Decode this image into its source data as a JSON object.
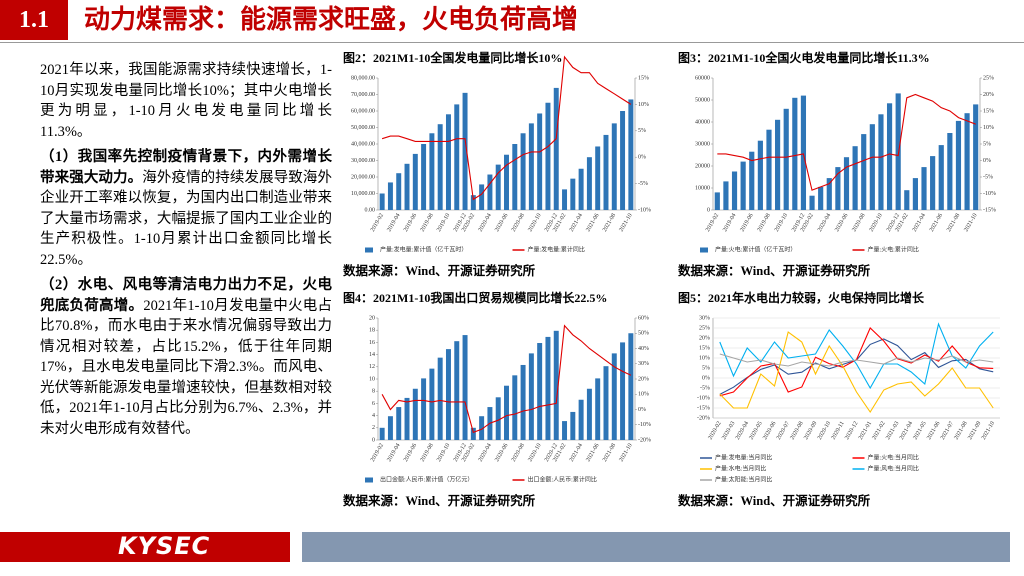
{
  "header": {
    "section": "1.1",
    "title": "动力煤需求：能源需求旺盛，火电负荷高增"
  },
  "body": [
    {
      "text": "2021年以来，我国能源需求持续快速增长，1-10月实现发电量同比增长10%；其中火电增长更为明显，1-10月火电发电量同比增长11.3%。"
    },
    {
      "lead": "（1）我国率先控制疫情背景下，内外需增长带来强大动力。",
      "text": "海外疫情的持续发展导致海外企业开工率难以恢复，为国内出口制造业带来了大量市场需求，大幅提振了国内工业企业的生产积极性。1-10月累计出口金额同比增长22.5%。"
    },
    {
      "lead": "（2）水电、风电等清洁电力出力不足，火电兜底负荷高增。",
      "text": "2021年1-10月发电量中火电占比70.8%，而水电由于来水情况偏弱导致出力情况相对较差，占比15.2%，低于往年同期17%，且水电发电量同比下滑2.3%。而风电、光伏等新能源发电量增速较快，但基数相对较低，2021年1-10月占比分别为6.7%、2.3%，并未对火电形成有效替代。"
    }
  ],
  "footer": {
    "logo": "KYSEC"
  },
  "chart_data": [
    {
      "type": "bar_line",
      "title": "图2：2021M1-10全国发电量同比增长10%",
      "source": "数据来源：Wind、开源证券研究所",
      "categories": [
        "2019-02",
        null,
        "2019-04",
        null,
        "2019-06",
        null,
        "2019-08",
        null,
        "2019-10",
        null,
        "2019-12",
        "2020-02",
        null,
        "2020-04",
        null,
        "2020-06",
        null,
        "2020-08",
        null,
        "2020-10",
        null,
        "2020-12",
        "2021-02",
        null,
        "2021-04",
        null,
        "2021-06",
        null,
        "2021-08",
        null,
        "2021-10"
      ],
      "series": [
        {
          "name": "产量:发电量:累计值（亿千瓦时）",
          "mark": "bar",
          "color": "#2e75b6",
          "values": [
            10000,
            16700,
            22300,
            28000,
            34000,
            40000,
            46500,
            52000,
            58000,
            64000,
            71000,
            9000,
            15500,
            21500,
            27500,
            33500,
            40000,
            46500,
            52500,
            58500,
            65000,
            74000,
            12500,
            19000,
            25000,
            32000,
            38500,
            45500,
            52500,
            60000,
            67000
          ]
        },
        {
          "name": "产量:发电量:累计同比",
          "mark": "line",
          "axis": "y2",
          "color": "#e00000",
          "values": [
            3.5,
            4,
            4,
            3.5,
            3,
            3,
            3,
            3,
            3,
            3.5,
            3.5,
            -8,
            -7,
            -5,
            -3,
            -1.5,
            -0.5,
            0.5,
            1,
            1,
            2,
            3.5,
            19,
            17,
            16,
            16,
            14,
            13,
            12,
            11,
            10
          ]
        }
      ],
      "ylim": [
        0,
        80000
      ],
      "yticks": [
        {
          "value": 0,
          "label": "0.00"
        },
        {
          "value": 10000,
          "label": "10,000.00"
        },
        {
          "value": 20000,
          "label": "20,000.00"
        },
        {
          "value": 30000,
          "label": "30,000.00"
        },
        {
          "value": 40000,
          "label": "40,000.00"
        },
        {
          "value": 50000,
          "label": "50,000.00"
        },
        {
          "value": 60000,
          "label": "60,000.00"
        },
        {
          "value": 70000,
          "label": "70,000.00"
        },
        {
          "value": 80000,
          "label": "80,000.00"
        }
      ],
      "y2lim": [
        -10,
        15
      ],
      "y2ticks": [
        {
          "value": -10,
          "label": "-10%"
        },
        {
          "value": -5,
          "label": "-5%"
        },
        {
          "value": 0,
          "label": "0%"
        },
        {
          "value": 5,
          "label": "5%"
        },
        {
          "value": 10,
          "label": "10%"
        },
        {
          "value": 15,
          "label": "15%"
        }
      ],
      "grid": false
    },
    {
      "type": "bar_line",
      "title": "图3：2021M1-10全国火电发电量同比增长11.3%",
      "source": "数据来源：Wind、开源证券研究所",
      "categories": [
        "2019-02",
        null,
        "2019-04",
        null,
        "2019-06",
        null,
        "2019-08",
        null,
        "2019-10",
        null,
        "2019-12",
        "2020-02",
        null,
        "2020-04",
        null,
        "2020-06",
        null,
        "2020-08",
        null,
        "2020-10",
        null,
        "2020-12",
        "2021-02",
        null,
        "2021-04",
        null,
        "2021-06",
        null,
        "2021-08",
        null,
        "2021-10"
      ],
      "series": [
        {
          "name": "产量:火电:累计值（亿千瓦时）",
          "mark": "bar",
          "color": "#2e75b6",
          "values": [
            8000,
            13000,
            17500,
            22000,
            26500,
            31500,
            36500,
            41000,
            46000,
            51000,
            52000,
            6500,
            10500,
            14500,
            19500,
            24000,
            29000,
            34500,
            39000,
            43500,
            48500,
            53000,
            9000,
            14500,
            19500,
            24500,
            29500,
            35000,
            40500,
            44000,
            48000
          ]
        },
        {
          "name": "产量:火电:累计同比",
          "mark": "line",
          "axis": "y2",
          "color": "#e00000",
          "values": [
            2,
            2,
            1.5,
            1,
            0,
            0.5,
            1,
            1,
            1,
            1.5,
            2,
            -9,
            -8,
            -7,
            -4,
            -2,
            -1,
            0,
            1,
            1,
            2,
            1.5,
            19,
            20,
            19,
            18,
            16,
            15,
            13,
            12,
            11
          ]
        }
      ],
      "ylim": [
        0,
        60000
      ],
      "yticks": [
        0,
        10000,
        20000,
        30000,
        40000,
        50000,
        60000
      ],
      "y2lim": [
        -15,
        25
      ],
      "y2ticks": [
        {
          "value": -15,
          "label": "-15%"
        },
        {
          "value": -10,
          "label": "-10%"
        },
        {
          "value": -5,
          "label": "-5%"
        },
        {
          "value": 0,
          "label": "0%"
        },
        {
          "value": 5,
          "label": "5%"
        },
        {
          "value": 10,
          "label": "10%"
        },
        {
          "value": 15,
          "label": "15%"
        },
        {
          "value": 20,
          "label": "20%"
        },
        {
          "value": 25,
          "label": "25%"
        }
      ],
      "grid": false
    },
    {
      "type": "bar_line",
      "title": "图4：2021M1-10我国出口贸易规模同比增长22.5%",
      "source": "数据来源：Wind、开源证券研究所",
      "categories": [
        "2019-02",
        null,
        "2019-04",
        null,
        "2019-06",
        null,
        "2019-08",
        null,
        "2019-10",
        null,
        "2019-12",
        "2020-02",
        null,
        "2020-04",
        null,
        "2020-06",
        null,
        "2020-08",
        null,
        "2020-10",
        null,
        "2020-12",
        "2021-02",
        null,
        "2021-04",
        null,
        "2021-06",
        null,
        "2021-08",
        null,
        "2021-10"
      ],
      "series": [
        {
          "name": "出口金额:人民币:累计值（万亿元）",
          "mark": "bar",
          "color": "#2e75b6",
          "values": [
            2.0,
            3.9,
            5.4,
            6.9,
            8.4,
            10.1,
            11.7,
            13.5,
            14.9,
            16.2,
            17.2,
            2.0,
            3.9,
            5.4,
            7.0,
            8.9,
            10.6,
            12.3,
            14.2,
            15.9,
            16.9,
            17.9,
            3.1,
            4.6,
            6.6,
            8.4,
            10.1,
            12.1,
            14.2,
            16.0,
            17.5
          ]
        },
        {
          "name": "出口金额:人民币:累计同比",
          "mark": "line",
          "axis": "y2",
          "color": "#e00000",
          "values": [
            10,
            0,
            6,
            5,
            6,
            6,
            5,
            6,
            5,
            5,
            5,
            -15,
            -13,
            -9,
            -7,
            -4,
            -3,
            -1,
            0,
            2,
            3,
            4,
            55,
            49,
            45,
            40,
            36,
            32,
            28,
            25,
            22.5
          ]
        }
      ],
      "ylim": [
        0,
        20
      ],
      "yticks": [
        0,
        2,
        4,
        6,
        8,
        10,
        12,
        14,
        16,
        18,
        20
      ],
      "y2lim": [
        -20,
        60
      ],
      "y2ticks": [
        {
          "value": -20,
          "label": "-20%"
        },
        {
          "value": -10,
          "label": "-10%"
        },
        {
          "value": 0,
          "label": "0%"
        },
        {
          "value": 10,
          "label": "10%"
        },
        {
          "value": 20,
          "label": "20%"
        },
        {
          "value": 30,
          "label": "30%"
        },
        {
          "value": 40,
          "label": "40%"
        },
        {
          "value": 50,
          "label": "50%"
        },
        {
          "value": 60,
          "label": "60%"
        }
      ],
      "grid": false
    },
    {
      "type": "line",
      "title": "图5：2021年水电出力较弱，火电保持同比增长",
      "source": "数据来源：Wind、开源证券研究所",
      "categories": [
        "2020-02",
        "2020-03",
        "2020-04",
        "2020-05",
        "2020-06",
        "2020-07",
        "2020-08",
        "2020-09",
        "2020-10",
        "2020-11",
        "2020-12",
        "2021-01",
        "2021-02",
        "2021-03",
        "2021-04",
        "2021-05",
        "2021-06",
        "2021-07",
        "2021-08",
        "2021-09",
        "2021-10"
      ],
      "series": [
        {
          "name": "产量:发电量:当月同比",
          "color": "#2f5597",
          "values": [
            -8.2,
            -4.6,
            0.3,
            4.3,
            6.5,
            1.9,
            2.9,
            7.5,
            4.6,
            6.8,
            9.0,
            16.8,
            19.5,
            16.2,
            9.2,
            12.7,
            5.3,
            8.6,
            9.3,
            4.6,
            3.1
          ]
        },
        {
          "name": "产量:火电:当月同比",
          "color": "#ff0000",
          "values": [
            -8.9,
            -7,
            0,
            6,
            7.3,
            -7,
            -4.5,
            10.4,
            7.2,
            5.4,
            9.2,
            25,
            18.5,
            9.6,
            7.5,
            11.5,
            8.4,
            16,
            8,
            5.1,
            4.8
          ]
        },
        {
          "name": "产量:水电:当月同比",
          "color": "#ffc000",
          "values": [
            -8,
            -15,
            -15,
            2,
            -4,
            23,
            18,
            2,
            16,
            6,
            -7,
            -17,
            -6,
            -3,
            -2,
            -9,
            -3,
            5,
            -5,
            -5,
            -15
          ]
        },
        {
          "name": "产量:风电:当月同比",
          "color": "#00b0f0",
          "values": [
            18,
            1,
            15,
            8,
            18,
            10,
            11,
            12,
            24,
            16,
            7,
            -5,
            7,
            7,
            3,
            -3,
            27,
            11,
            5,
            16,
            23
          ]
        },
        {
          "name": "产量:太阳能:当月同比",
          "color": "#a5a5a5",
          "values": [
            12,
            10,
            8,
            9,
            7,
            6,
            8,
            7,
            6,
            8,
            9,
            8,
            7,
            10,
            8,
            10,
            9,
            11,
            8,
            9,
            8
          ]
        }
      ],
      "ylim": [
        -20,
        30
      ],
      "yticks": [
        {
          "value": -20,
          "label": "-20%"
        },
        {
          "value": -15,
          "label": "-15%"
        },
        {
          "value": -10,
          "label": "-10%"
        },
        {
          "value": -5,
          "label": "-5%"
        },
        {
          "value": 0,
          "label": "0%"
        },
        {
          "value": 5,
          "label": "5%"
        },
        {
          "value": 10,
          "label": "10%"
        },
        {
          "value": 15,
          "label": "15%"
        },
        {
          "value": 20,
          "label": "20%"
        },
        {
          "value": 25,
          "label": "25%"
        },
        {
          "value": 30,
          "label": "30%"
        }
      ],
      "grid": true
    }
  ]
}
